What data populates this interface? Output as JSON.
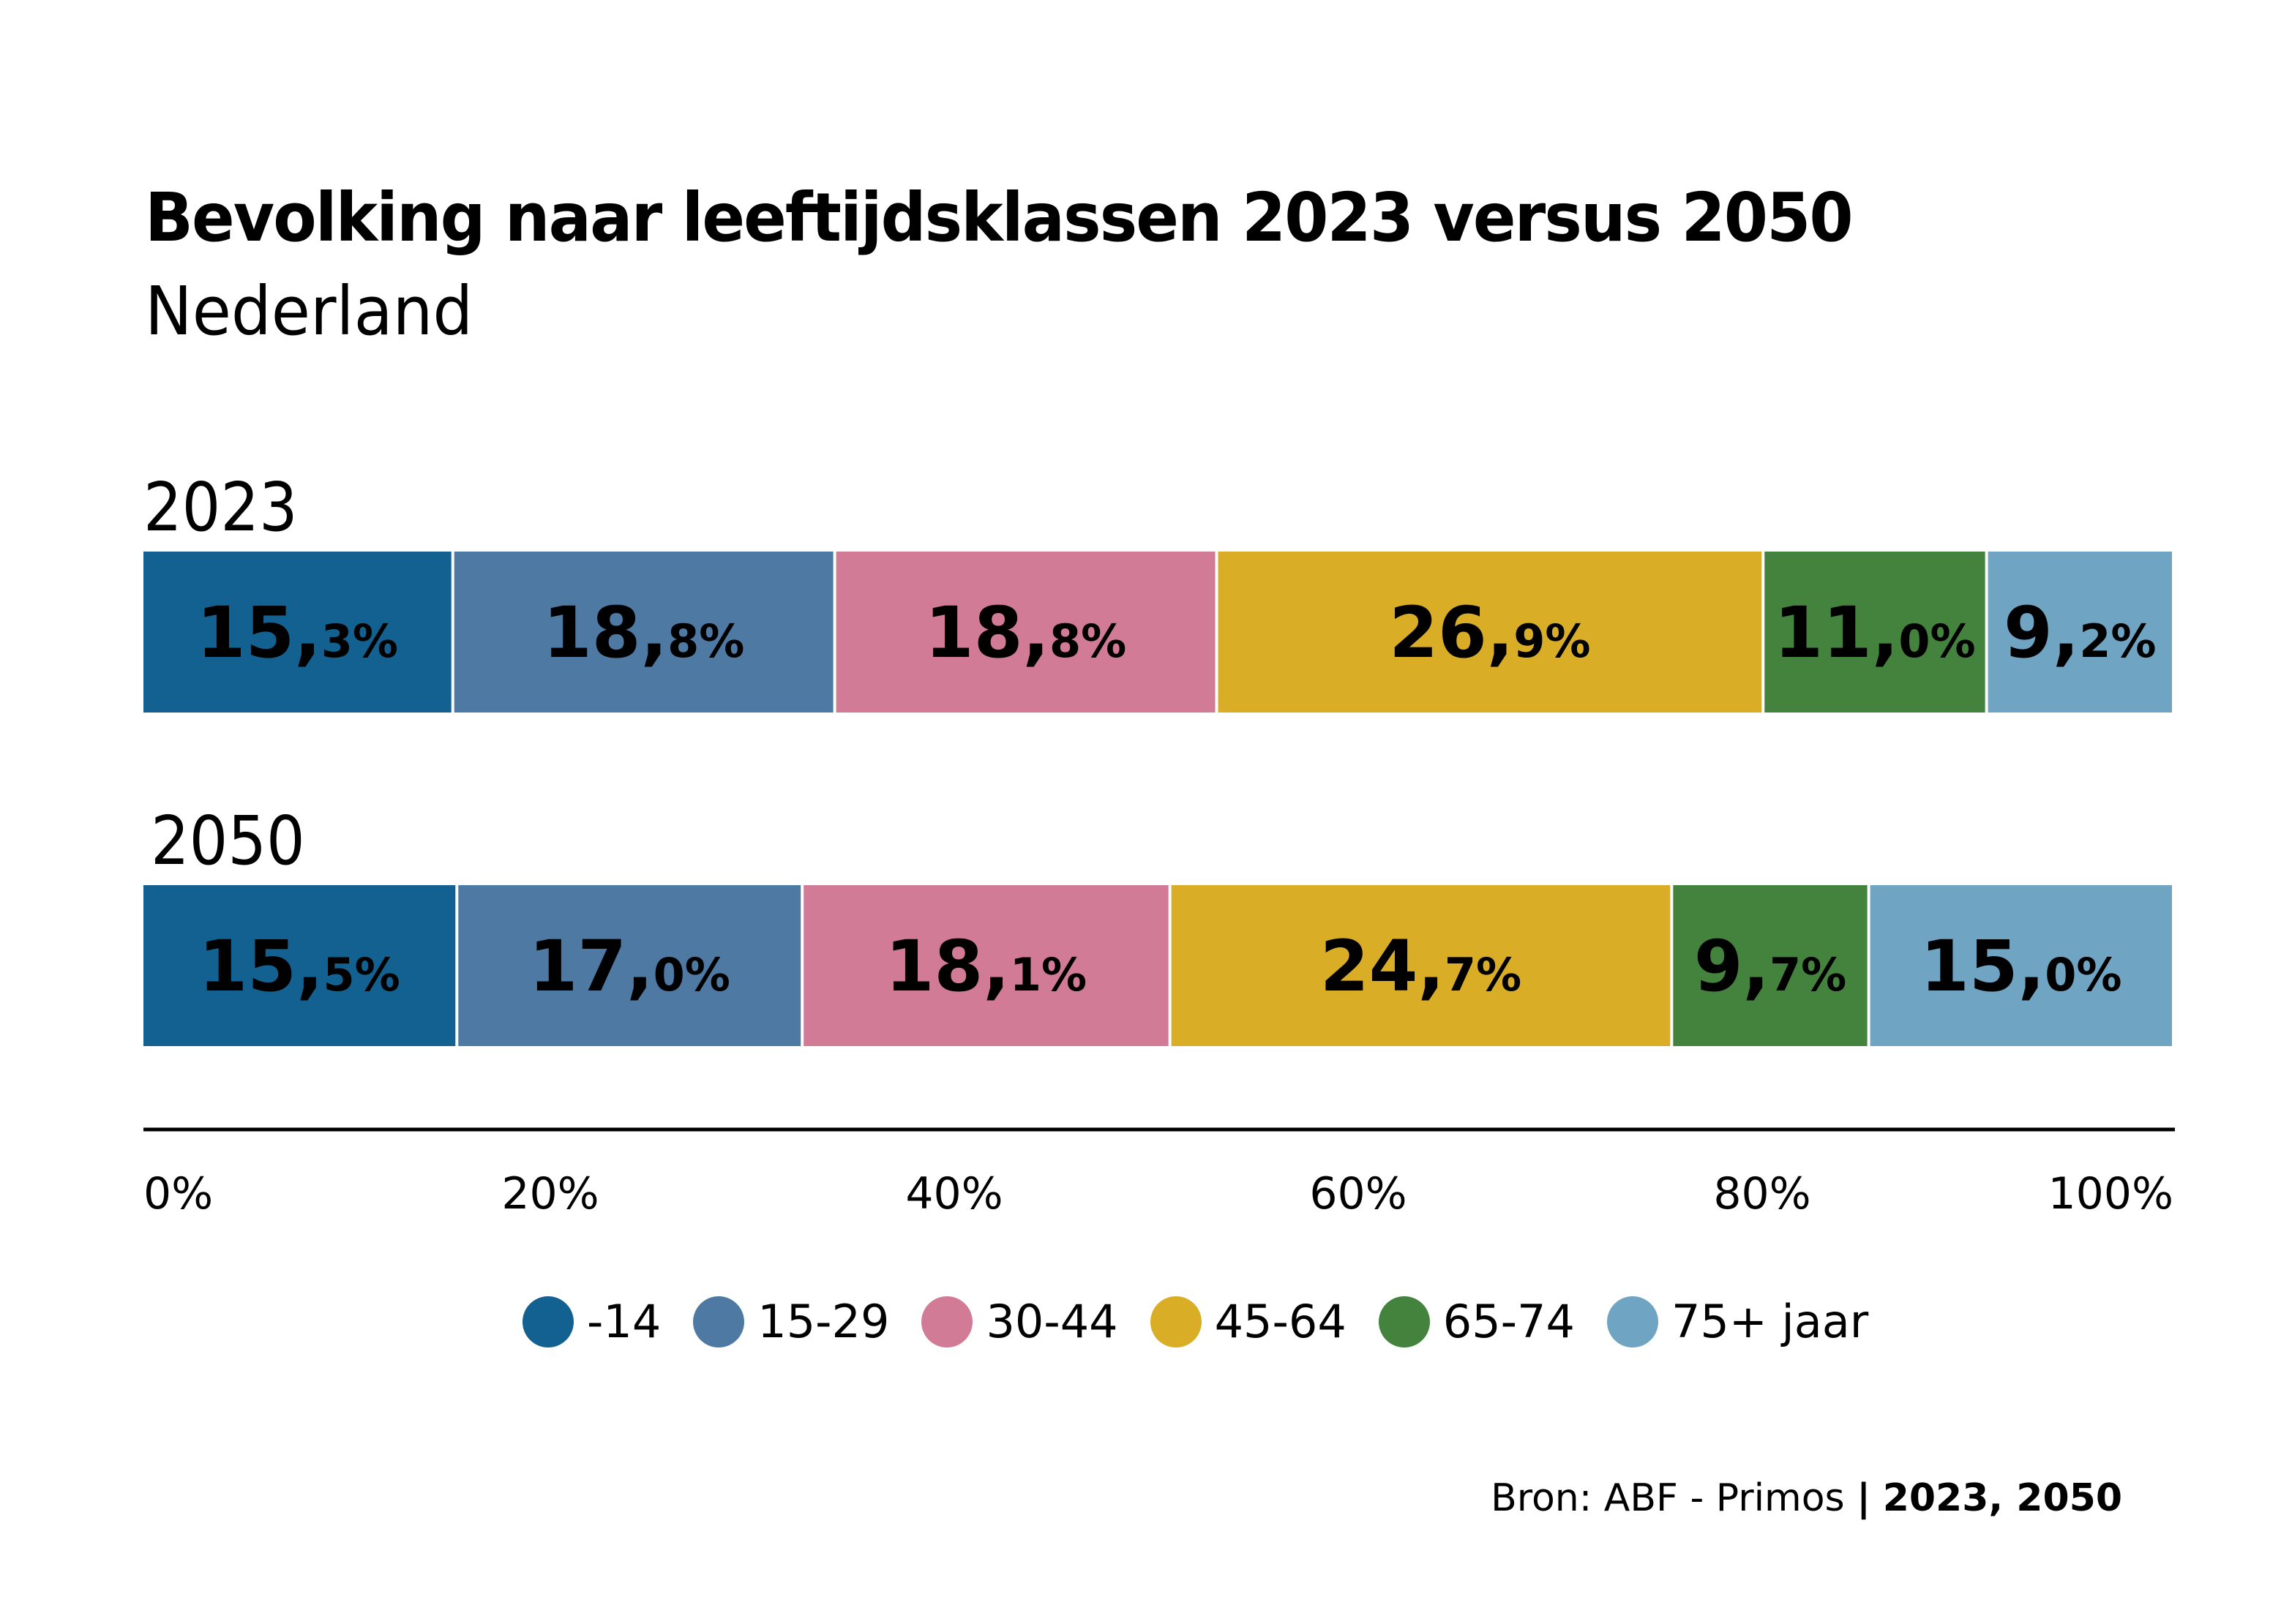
{
  "chart_data": {
    "type": "bar",
    "orientation": "horizontal",
    "stacked": "percent",
    "title": "Bevolking naar leeftijdsklassen 2023 versus 2050",
    "subtitle": "Nederland",
    "xlabel": "",
    "ylabel": "",
    "xlim": [
      0,
      100
    ],
    "x_ticks": [
      "0%",
      "20%",
      "40%",
      "60%",
      "80%",
      "100%"
    ],
    "categories": [
      "2023",
      "2050"
    ],
    "series": [
      {
        "name": "-14",
        "color": "#136190",
        "values": [
          15.3,
          15.5
        ],
        "labels": [
          [
            "15,",
            "3%"
          ],
          [
            "15,",
            "5%"
          ]
        ]
      },
      {
        "name": "15-29",
        "color": "#4d79a3",
        "values": [
          18.8,
          17.0
        ],
        "labels": [
          [
            "18,",
            "8%"
          ],
          [
            "17,",
            "0%"
          ]
        ]
      },
      {
        "name": "30-44",
        "color": "#d17b97",
        "values": [
          18.8,
          18.1
        ],
        "labels": [
          [
            "18,",
            "8%"
          ],
          [
            "18,",
            "1%"
          ]
        ]
      },
      {
        "name": "45-64",
        "color": "#d9ad26",
        "values": [
          26.9,
          24.7
        ],
        "labels": [
          [
            "26,",
            "9%"
          ],
          [
            "24,",
            "7%"
          ]
        ]
      },
      {
        "name": "65-74",
        "color": "#44833d",
        "values": [
          11.0,
          9.7
        ],
        "labels": [
          [
            "11,",
            "0%"
          ],
          [
            "9,",
            "7%"
          ]
        ]
      },
      {
        "name": "75+ jaar",
        "color": "#6fa4c2",
        "values": [
          9.2,
          15.0
        ],
        "labels": [
          [
            "9,",
            "2%"
          ],
          [
            "15,",
            "0%"
          ]
        ]
      }
    ],
    "legend_position": "bottom-center",
    "grid": false
  },
  "source": {
    "prefix": "Bron: ABF - Primos",
    "separator": "|",
    "years": "2023, 2050"
  }
}
